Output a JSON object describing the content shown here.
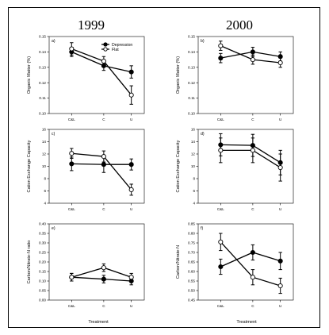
{
  "header": {
    "year_left": "1999",
    "year_right": "2000"
  },
  "xlabel": "Treatment",
  "legend": {
    "depression": "Depression",
    "flat": "Flat"
  },
  "chart_data": [
    {
      "type": "line",
      "label": "a)",
      "ylabel": "Organic Matter (%)",
      "categories": [
        "C&L",
        "C",
        "U"
      ],
      "ylim": [
        0.1,
        0.15
      ],
      "yticks": [
        "0.10",
        "0.11",
        "0.12",
        "0.13",
        "0.14",
        "0.15"
      ],
      "series": [
        {
          "name": "Depression",
          "marker": "filled",
          "values": [
            0.14,
            0.131,
            0.127
          ],
          "err": [
            0.003,
            0.003,
            0.004
          ]
        },
        {
          "name": "Flat",
          "marker": "open",
          "values": [
            0.142,
            0.134,
            0.112
          ],
          "err": [
            0.004,
            0.003,
            0.006
          ]
        }
      ]
    },
    {
      "type": "line",
      "label": "b)",
      "ylabel": "Organic Matter (%)",
      "categories": [
        "C&L",
        "C",
        "U"
      ],
      "ylim": [
        0.1,
        0.15
      ],
      "yticks": [
        "0.10",
        "0.11",
        "0.12",
        "0.13",
        "0.14",
        "0.15"
      ],
      "series": [
        {
          "name": "Depression",
          "marker": "filled",
          "values": [
            0.136,
            0.14,
            0.137
          ],
          "err": [
            0.003,
            0.003,
            0.003
          ]
        },
        {
          "name": "Flat",
          "marker": "open",
          "values": [
            0.144,
            0.135,
            0.133
          ],
          "err": [
            0.003,
            0.003,
            0.003
          ]
        }
      ]
    },
    {
      "type": "line",
      "label": "c)",
      "ylabel": "Cation Exchange Capacity",
      "categories": [
        "C&L",
        "C",
        "U"
      ],
      "ylim": [
        4,
        16
      ],
      "yticks": [
        "4",
        "6",
        "8",
        "10",
        "12",
        "14",
        "16"
      ],
      "series": [
        {
          "name": "Depression",
          "marker": "filled",
          "values": [
            10.4,
            10.3,
            10.3
          ],
          "err": [
            1.1,
            1.3,
            0.9
          ]
        },
        {
          "name": "Flat",
          "marker": "open",
          "values": [
            12.1,
            11.6,
            6.2
          ],
          "err": [
            0.8,
            0.9,
            0.9
          ]
        }
      ]
    },
    {
      "type": "line",
      "label": "d)",
      "ylabel": "Cation Exchange Capacity",
      "categories": [
        "C&L",
        "C",
        "U"
      ],
      "ylim": [
        4,
        16
      ],
      "yticks": [
        "4",
        "6",
        "8",
        "10",
        "12",
        "14",
        "16"
      ],
      "series": [
        {
          "name": "Depression",
          "marker": "filled",
          "values": [
            13.5,
            13.4,
            10.6
          ],
          "err": [
            1.8,
            1.8,
            2.0
          ]
        },
        {
          "name": "Flat",
          "marker": "open",
          "values": [
            12.6,
            12.6,
            9.8
          ],
          "err": [
            2.0,
            2.0,
            2.2
          ]
        }
      ]
    },
    {
      "type": "line",
      "label": "e)",
      "ylabel": "Carbon/Nitrate-N ratio",
      "categories": [
        "C&L",
        "C",
        "U"
      ],
      "ylim": [
        0.0,
        0.4
      ],
      "yticks": [
        "0.00",
        "0.05",
        "0.10",
        "0.15",
        "0.20",
        "0.25",
        "0.30",
        "0.35",
        "0.40"
      ],
      "series": [
        {
          "name": "Depression",
          "marker": "filled",
          "values": [
            0.12,
            0.11,
            0.1
          ],
          "err": [
            0.02,
            0.02,
            0.02
          ]
        },
        {
          "name": "Flat",
          "marker": "open",
          "values": [
            0.12,
            0.17,
            0.12
          ],
          "err": [
            0.02,
            0.02,
            0.02
          ]
        }
      ]
    },
    {
      "type": "line",
      "label": "f)",
      "ylabel": "Carbon/Nitrate-N",
      "categories": [
        "C&L",
        "C",
        "U"
      ],
      "ylim": [
        0.45,
        0.85
      ],
      "yticks": [
        "0.45",
        "0.50",
        "0.55",
        "0.60",
        "0.65",
        "0.70",
        "0.75",
        "0.80",
        "0.85"
      ],
      "series": [
        {
          "name": "Depression",
          "marker": "filled",
          "values": [
            0.625,
            0.7,
            0.655
          ],
          "err": [
            0.04,
            0.04,
            0.045
          ]
        },
        {
          "name": "Flat",
          "marker": "open",
          "values": [
            0.755,
            0.57,
            0.525
          ],
          "err": [
            0.045,
            0.04,
            0.04
          ]
        }
      ]
    }
  ]
}
